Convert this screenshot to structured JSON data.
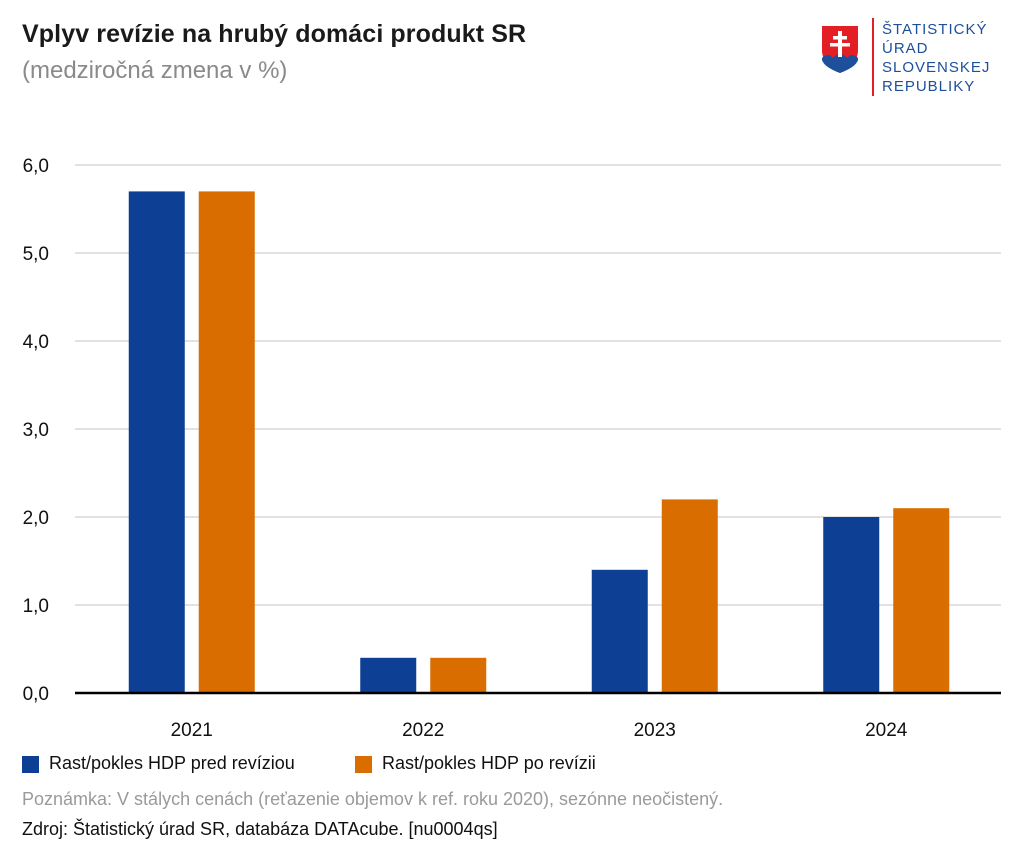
{
  "header": {
    "title": "Vplyv revízie na hrubý domáci produkt SR",
    "subtitle": "(medziročná zmena v %)"
  },
  "logo": {
    "lines": [
      "ŠTATISTICKÝ",
      "ÚRAD",
      "SLOVENSKEJ",
      "REPUBLIKY"
    ],
    "emblem": "slovak-coat-of-arms-icon"
  },
  "chart_data": {
    "type": "bar",
    "title": "Vplyv revízie na hrubý domáci produkt SR",
    "subtitle": "(medziročná zmena v %)",
    "categories": [
      "2021",
      "2022",
      "2023",
      "2024"
    ],
    "series": [
      {
        "name": "Rast/pokles HDP pred revíziou",
        "values": [
          5.7,
          0.4,
          1.4,
          2.0
        ],
        "color": "#0d3f94"
      },
      {
        "name": "Rast/pokles HDP po revízii",
        "values": [
          5.7,
          0.4,
          2.2,
          2.1
        ],
        "color": "#d96d00"
      }
    ],
    "ylim": [
      0,
      6
    ],
    "yticks": [
      "0,0",
      "1,0",
      "2,0",
      "3,0",
      "4,0",
      "5,0",
      "6,0"
    ],
    "xlabel": "",
    "ylabel": "",
    "grid": true,
    "legend": "bottom-left"
  },
  "footer": {
    "note": "Poznámka: V stálych cenách (reťazenie objemov k ref. roku 2020), sezónne neočistený.",
    "source": "Zdroj: Štatistický úrad SR, databáza DATAcube. [nu0004qs]"
  },
  "colors": {
    "series1": "#0d3f94",
    "series2": "#d96d00",
    "grid": "#d9d9d9",
    "axis": "#000000",
    "brand_blue": "#1d4f9b",
    "brand_red": "#e31e24"
  }
}
